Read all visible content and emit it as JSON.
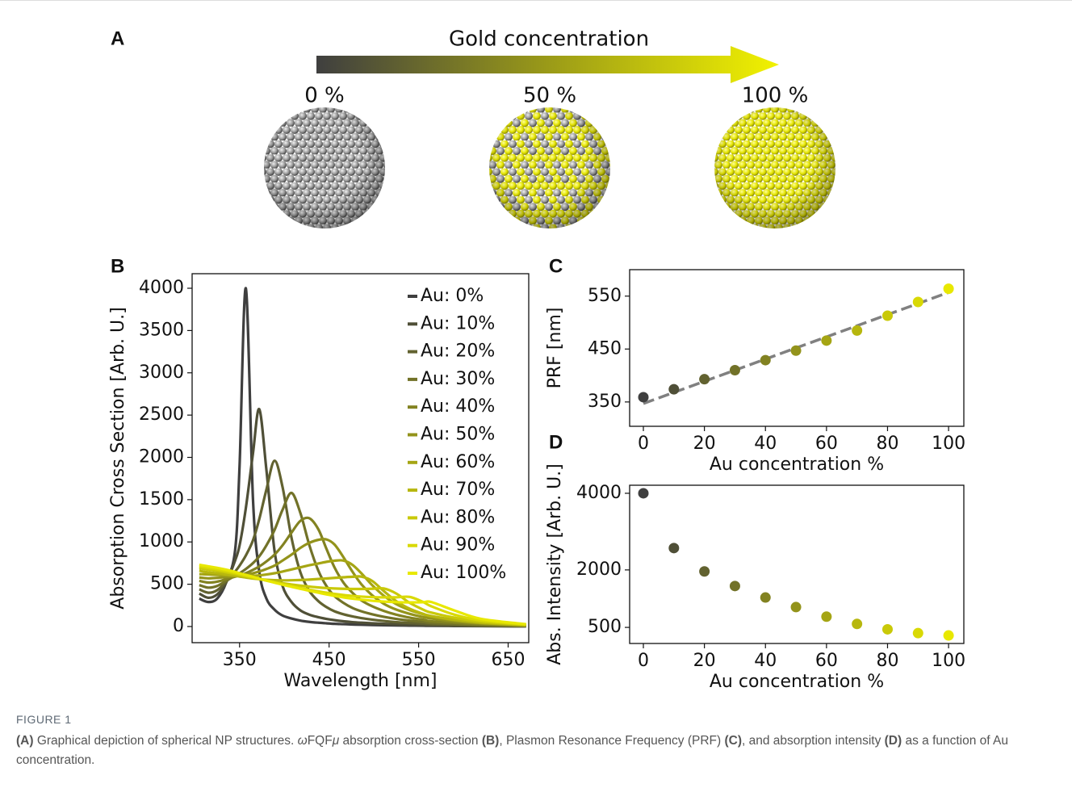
{
  "panel_a": {
    "label": "A",
    "title": "Gold concentration",
    "levels": [
      "0 %",
      "50 %",
      "100 %"
    ]
  },
  "chart_data": [
    {
      "type": "line",
      "panel_label": "B",
      "xlabel": "Wavelength [nm]",
      "ylabel": "Absorption Cross Section [Arb. U.]",
      "x": [
        305,
        315,
        325,
        335,
        345,
        350,
        357,
        365,
        372,
        380,
        389,
        398,
        408,
        418,
        428,
        438,
        447,
        456,
        466,
        476,
        486,
        498,
        511,
        525,
        540,
        555,
        564,
        590,
        620,
        670
      ],
      "xlim": [
        297,
        673
      ],
      "ylim": [
        -191,
        4172
      ],
      "xticks": [
        350,
        450,
        550,
        650
      ],
      "yticks": [
        0,
        500,
        1000,
        1500,
        2000,
        2500,
        3000,
        3500,
        4000
      ],
      "legend": "upper right",
      "series": [
        {
          "name": "Au: 0%",
          "color": "#3f3f3f",
          "values": [
            330,
            290,
            330,
            520,
            900,
            1900,
            4000,
            1500,
            650,
            330,
            200,
            130,
            95,
            70,
            55,
            45,
            38,
            32,
            28,
            24,
            21,
            18,
            15,
            13,
            11,
            9,
            8,
            6,
            4,
            2
          ]
        },
        {
          "name": "Au: 10%",
          "color": "#4f4f37",
          "values": [
            390,
            340,
            380,
            520,
            780,
            960,
            1400,
            2050,
            2570,
            1850,
            900,
            480,
            290,
            190,
            140,
            110,
            90,
            75,
            62,
            52,
            45,
            38,
            32,
            26,
            21,
            17,
            14,
            10,
            6,
            3
          ]
        },
        {
          "name": "Au: 20%",
          "color": "#626230",
          "values": [
            440,
            400,
            430,
            530,
            650,
            720,
            840,
            1020,
            1270,
            1620,
            1960,
            1650,
            1050,
            640,
            420,
            300,
            230,
            180,
            145,
            120,
            100,
            82,
            66,
            52,
            42,
            33,
            26,
            18,
            10,
            4
          ]
        },
        {
          "name": "Au: 30%",
          "color": "#727228",
          "values": [
            490,
            460,
            480,
            540,
            600,
            630,
            680,
            750,
            830,
            960,
            1140,
            1380,
            1580,
            1340,
            960,
            660,
            480,
            360,
            280,
            220,
            180,
            145,
            115,
            90,
            70,
            54,
            42,
            30,
            17,
            6
          ]
        },
        {
          "name": "Au: 40%",
          "color": "#828221",
          "values": [
            540,
            520,
            530,
            560,
            590,
            605,
            630,
            670,
            710,
            770,
            850,
            960,
            1110,
            1250,
            1280,
            1150,
            920,
            700,
            520,
            400,
            310,
            240,
            185,
            140,
            105,
            80,
            62,
            44,
            26,
            9
          ]
        },
        {
          "name": "Au: 50%",
          "color": "#93931b",
          "values": [
            580,
            570,
            575,
            585,
            595,
            600,
            610,
            630,
            650,
            680,
            720,
            780,
            850,
            930,
            990,
            1025,
            1030,
            970,
            820,
            650,
            500,
            370,
            270,
            200,
            150,
            112,
            95,
            60,
            35,
            12
          ]
        },
        {
          "name": "Au: 60%",
          "color": "#a5a514",
          "values": [
            620,
            615,
            610,
            605,
            600,
            598,
            596,
            600,
            605,
            615,
            630,
            650,
            675,
            700,
            725,
            745,
            765,
            778,
            780,
            730,
            630,
            490,
            365,
            265,
            195,
            145,
            120,
            75,
            42,
            15
          ]
        },
        {
          "name": "Au: 70%",
          "color": "#b7b70e",
          "values": [
            660,
            640,
            630,
            615,
            600,
            590,
            580,
            568,
            560,
            553,
            548,
            546,
            547,
            550,
            555,
            562,
            568,
            575,
            582,
            588,
            590,
            540,
            420,
            300,
            210,
            150,
            125,
            80,
            45,
            16
          ]
        },
        {
          "name": "Au: 80%",
          "color": "#c9c908",
          "values": [
            690,
            672,
            658,
            640,
            620,
            608,
            592,
            575,
            560,
            545,
            528,
            512,
            497,
            484,
            472,
            462,
            455,
            450,
            446,
            444,
            444,
            446,
            450,
            390,
            280,
            200,
            165,
            105,
            58,
            20
          ]
        },
        {
          "name": "Au: 90%",
          "color": "#d9d904",
          "values": [
            710,
            692,
            676,
            656,
            632,
            618,
            600,
            580,
            562,
            542,
            520,
            498,
            476,
            455,
            435,
            416,
            400,
            386,
            373,
            362,
            354,
            348,
            345,
            345,
            350,
            290,
            240,
            140,
            72,
            24
          ]
        },
        {
          "name": "Au: 100%",
          "color": "#e8e800",
          "values": [
            730,
            712,
            694,
            672,
            646,
            630,
            610,
            588,
            567,
            545,
            520,
            495,
            470,
            446,
            422,
            400,
            380,
            362,
            345,
            330,
            318,
            305,
            295,
            288,
            285,
            287,
            290,
            190,
            90,
            28
          ]
        }
      ]
    },
    {
      "type": "scatter",
      "panel_label": "C",
      "xlabel": "Au concentration %",
      "ylabel": "PRF [nm]",
      "x": [
        0,
        10,
        20,
        30,
        40,
        50,
        60,
        70,
        80,
        90,
        100
      ],
      "values": [
        359,
        374,
        393,
        410,
        429,
        447,
        466,
        485,
        513,
        539,
        564
      ],
      "colors": [
        "#3f3f3f",
        "#4f4f37",
        "#626230",
        "#727228",
        "#828221",
        "#93931b",
        "#a5a514",
        "#b7b70e",
        "#c9c908",
        "#d9d904",
        "#e8e800"
      ],
      "fit": {
        "x": [
          0,
          100
        ],
        "values": [
          347,
          557
        ],
        "color": "#808080"
      },
      "xlim": [
        -4.5,
        105
      ],
      "ylim": [
        304,
        600
      ],
      "xticks": [
        0,
        20,
        40,
        60,
        80,
        100
      ],
      "yticks": [
        350,
        450,
        550
      ]
    },
    {
      "type": "scatter",
      "panel_label": "D",
      "xlabel": "Au concentration %",
      "ylabel": "Abs. Intensity [Arb. U.]",
      "x": [
        0,
        10,
        20,
        30,
        40,
        50,
        60,
        70,
        80,
        90,
        100
      ],
      "values": [
        4000,
        2570,
        1960,
        1580,
        1280,
        1030,
        780,
        590,
        450,
        350,
        290
      ],
      "colors": [
        "#3f3f3f",
        "#4f4f37",
        "#626230",
        "#727228",
        "#828221",
        "#93931b",
        "#a5a514",
        "#b7b70e",
        "#c9c908",
        "#d9d904",
        "#e8e800"
      ],
      "xlim": [
        -4.5,
        105
      ],
      "ylim": [
        80,
        4210
      ],
      "xticks": [
        0,
        20,
        40,
        60,
        80,
        100
      ],
      "yticks": [
        500,
        2000,
        4000
      ]
    }
  ],
  "figure": {
    "label": "FIGURE 1",
    "caption": [
      {
        "text": "(A)",
        "style": "bold"
      },
      {
        "text": " Graphical depiction of spherical NP structures. "
      },
      {
        "text": "ω",
        "style": "italic"
      },
      {
        "text": "FQF"
      },
      {
        "text": "μ",
        "style": "italic"
      },
      {
        "text": " absorption cross-section "
      },
      {
        "text": "(B)",
        "style": "bold"
      },
      {
        "text": ", Plasmon Resonance Frequency (PRF) "
      },
      {
        "text": "(C)",
        "style": "bold"
      },
      {
        "text": ", and absorption intensity "
      },
      {
        "text": "(D)",
        "style": "bold"
      },
      {
        "text": " as a function of Au concentration."
      }
    ]
  }
}
